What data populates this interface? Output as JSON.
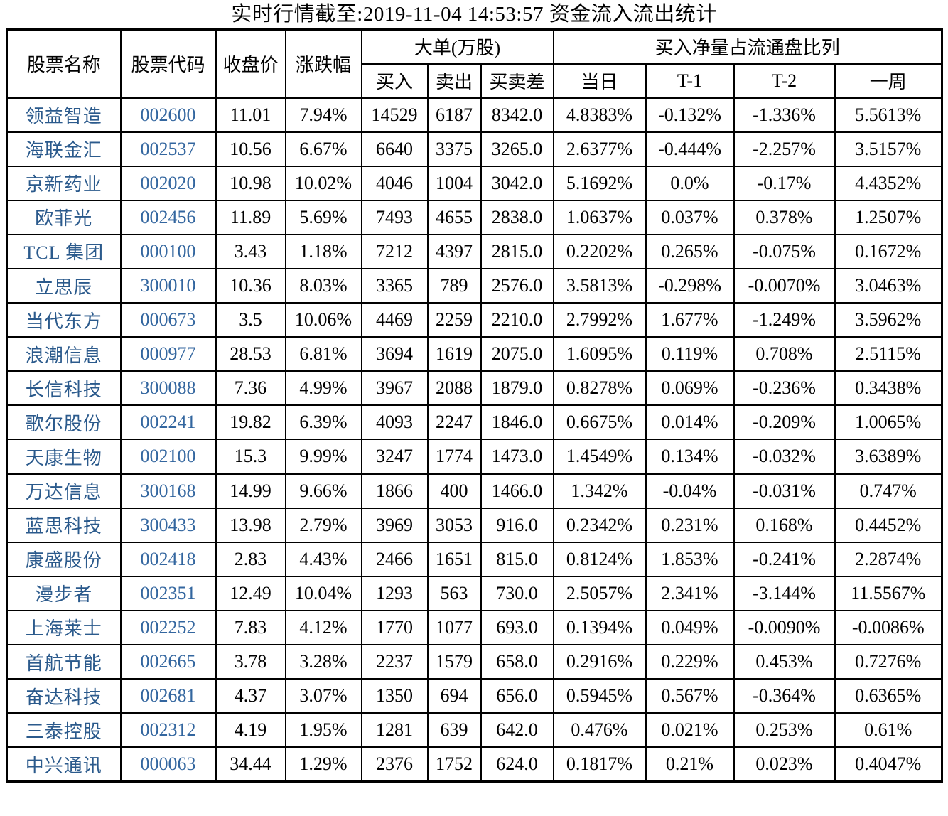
{
  "title": "实时行情截至:2019-11-04 14:53:57 资金流入流出统计",
  "colors": {
    "name_blue": "#2B5A8C",
    "code_blue": "#33669F",
    "border_black": "#000000",
    "text_black": "#000000"
  },
  "table": {
    "headers": {
      "stock_name": "股票名称",
      "stock_code": "股票代码",
      "close_price": "收盘价",
      "change_pct": "涨跌幅",
      "large_order_group": "大单(万股)",
      "buy": "买入",
      "sell": "卖出",
      "diff": "买卖差",
      "net_buy_group": "买入净量占流通盘比列",
      "today": "当日",
      "t1": "T-1",
      "t2": "T-2",
      "week": "一周"
    },
    "rows": [
      [
        "领益智造",
        "002600",
        "11.01",
        "7.94%",
        "14529",
        "6187",
        "8342.0",
        "4.8383%",
        "-0.132%",
        "-1.336%",
        "5.5613%"
      ],
      [
        "海联金汇",
        "002537",
        "10.56",
        "6.67%",
        "6640",
        "3375",
        "3265.0",
        "2.6377%",
        "-0.444%",
        "-2.257%",
        "3.5157%"
      ],
      [
        "京新药业",
        "002020",
        "10.98",
        "10.02%",
        "4046",
        "1004",
        "3042.0",
        "5.1692%",
        "0.0%",
        "-0.17%",
        "4.4352%"
      ],
      [
        "欧菲光",
        "002456",
        "11.89",
        "5.69%",
        "7493",
        "4655",
        "2838.0",
        "1.0637%",
        "0.037%",
        "0.378%",
        "1.2507%"
      ],
      [
        "TCL 集团",
        "000100",
        "3.43",
        "1.18%",
        "7212",
        "4397",
        "2815.0",
        "0.2202%",
        "0.265%",
        "-0.075%",
        "0.1672%"
      ],
      [
        "立思辰",
        "300010",
        "10.36",
        "8.03%",
        "3365",
        "789",
        "2576.0",
        "3.5813%",
        "-0.298%",
        "-0.0070%",
        "3.0463%"
      ],
      [
        "当代东方",
        "000673",
        "3.5",
        "10.06%",
        "4469",
        "2259",
        "2210.0",
        "2.7992%",
        "1.677%",
        "-1.249%",
        "3.5962%"
      ],
      [
        "浪潮信息",
        "000977",
        "28.53",
        "6.81%",
        "3694",
        "1619",
        "2075.0",
        "1.6095%",
        "0.119%",
        "0.708%",
        "2.5115%"
      ],
      [
        "长信科技",
        "300088",
        "7.36",
        "4.99%",
        "3967",
        "2088",
        "1879.0",
        "0.8278%",
        "0.069%",
        "-0.236%",
        "0.3438%"
      ],
      [
        "歌尔股份",
        "002241",
        "19.82",
        "6.39%",
        "4093",
        "2247",
        "1846.0",
        "0.6675%",
        "0.014%",
        "-0.209%",
        "1.0065%"
      ],
      [
        "天康生物",
        "002100",
        "15.3",
        "9.99%",
        "3247",
        "1774",
        "1473.0",
        "1.4549%",
        "0.134%",
        "-0.032%",
        "3.6389%"
      ],
      [
        "万达信息",
        "300168",
        "14.99",
        "9.66%",
        "1866",
        "400",
        "1466.0",
        "1.342%",
        "-0.04%",
        "-0.031%",
        "0.747%"
      ],
      [
        "蓝思科技",
        "300433",
        "13.98",
        "2.79%",
        "3969",
        "3053",
        "916.0",
        "0.2342%",
        "0.231%",
        "0.168%",
        "0.4452%"
      ],
      [
        "康盛股份",
        "002418",
        "2.83",
        "4.43%",
        "2466",
        "1651",
        "815.0",
        "0.8124%",
        "1.853%",
        "-0.241%",
        "2.2874%"
      ],
      [
        "漫步者",
        "002351",
        "12.49",
        "10.04%",
        "1293",
        "563",
        "730.0",
        "2.5057%",
        "2.341%",
        "-3.144%",
        "11.5567%"
      ],
      [
        "上海莱士",
        "002252",
        "7.83",
        "4.12%",
        "1770",
        "1077",
        "693.0",
        "0.1394%",
        "0.049%",
        "-0.0090%",
        "-0.0086%"
      ],
      [
        "首航节能",
        "002665",
        "3.78",
        "3.28%",
        "2237",
        "1579",
        "658.0",
        "0.2916%",
        "0.229%",
        "0.453%",
        "0.7276%"
      ],
      [
        "奋达科技",
        "002681",
        "4.37",
        "3.07%",
        "1350",
        "694",
        "656.0",
        "0.5945%",
        "0.567%",
        "-0.364%",
        "0.6365%"
      ],
      [
        "三泰控股",
        "002312",
        "4.19",
        "1.95%",
        "1281",
        "639",
        "642.0",
        "0.476%",
        "0.021%",
        "0.253%",
        "0.61%"
      ],
      [
        "中兴通讯",
        "000063",
        "34.44",
        "1.29%",
        "2376",
        "1752",
        "624.0",
        "0.1817%",
        "0.21%",
        "0.023%",
        "0.4047%"
      ]
    ]
  }
}
